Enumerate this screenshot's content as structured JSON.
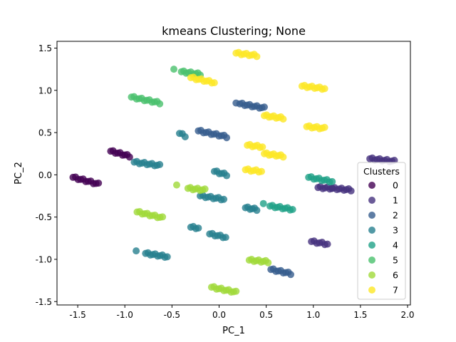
{
  "chart_data": {
    "type": "scatter",
    "title": "kmeans Clustering; None",
    "xlabel": "PC_1",
    "ylabel": "PC_2",
    "xlim": [
      -1.72,
      2.03
    ],
    "ylim": [
      -1.54,
      1.58
    ],
    "xticks": [
      "-1.5",
      "-1.0",
      "-0.5",
      "0.0",
      "0.5",
      "1.0",
      "1.5",
      "2.0"
    ],
    "xtick_values": [
      -1.5,
      -1.0,
      -0.5,
      0.0,
      0.5,
      1.0,
      1.5,
      2.0
    ],
    "yticks": [
      "-1.5",
      "-1.0",
      "-0.5",
      "0.0",
      "0.5",
      "1.0",
      "1.5"
    ],
    "ytick_values": [
      -1.5,
      -1.0,
      -0.5,
      0.0,
      0.5,
      1.0,
      1.5
    ],
    "grid": false,
    "legend": {
      "title": "Clusters",
      "position": "center-right"
    },
    "series": [
      {
        "name": "0",
        "color": "#440154",
        "segments": [
          {
            "x": [
              -1.55,
              -1.28
            ],
            "y": [
              -0.03,
              -0.11
            ]
          },
          {
            "x": [
              -1.15,
              -0.95
            ],
            "y": [
              0.28,
              0.22
            ]
          }
        ]
      },
      {
        "name": "1",
        "color": "#46327e",
        "segments": [
          {
            "x": [
              1.6,
              1.86
            ],
            "y": [
              0.19,
              0.16
            ]
          },
          {
            "x": [
              0.98,
              1.15
            ],
            "y": [
              -0.79,
              -0.82
            ]
          },
          {
            "x": [
              1.2,
              1.4
            ],
            "y": [
              -0.16,
              -0.18
            ]
          },
          {
            "x": [
              1.05,
              1.2
            ],
            "y": [
              -0.15,
              -0.16
            ]
          }
        ]
      },
      {
        "name": "2",
        "color": "#365c8d",
        "segments": [
          {
            "x": [
              -0.22,
              0.08
            ],
            "y": [
              0.52,
              0.45
            ]
          },
          {
            "x": [
              0.22,
              0.48
            ],
            "y": [
              0.84,
              0.79
            ]
          },
          {
            "x": [
              0.18,
              0.18
            ],
            "y": [
              0.85,
              0.85
            ]
          },
          {
            "x": [
              0.55,
              0.76
            ],
            "y": [
              -1.12,
              -1.17
            ]
          }
        ]
      },
      {
        "name": "3",
        "color": "#277f8e",
        "segments": [
          {
            "x": [
              -0.9,
              -0.63
            ],
            "y": [
              0.15,
              0.11
            ]
          },
          {
            "x": [
              -0.78,
              -0.55
            ],
            "y": [
              -0.93,
              -0.97
            ]
          },
          {
            "x": [
              -0.2,
              0.05
            ],
            "y": [
              -0.25,
              -0.29
            ]
          },
          {
            "x": [
              -0.05,
              0.08
            ],
            "y": [
              0.04,
              0.0
            ]
          },
          {
            "x": [
              -0.1,
              0.07
            ],
            "y": [
              -0.7,
              -0.74
            ]
          },
          {
            "x": [
              -0.88,
              -0.88
            ],
            "y": [
              -0.9,
              -0.9
            ]
          },
          {
            "x": [
              -0.42,
              -0.36
            ],
            "y": [
              0.49,
              0.46
            ]
          },
          {
            "x": [
              -0.3,
              -0.22
            ],
            "y": [
              -0.62,
              -0.63
            ]
          },
          {
            "x": [
              0.28,
              0.4
            ],
            "y": [
              -0.39,
              -0.41
            ]
          }
        ]
      },
      {
        "name": "4",
        "color": "#1fa187",
        "segments": [
          {
            "x": [
              0.54,
              0.78
            ],
            "y": [
              -0.37,
              -0.41
            ]
          },
          {
            "x": [
              0.95,
              1.2
            ],
            "y": [
              -0.03,
              -0.08
            ]
          },
          {
            "x": [
              0.47,
              0.47
            ],
            "y": [
              -0.34,
              -0.34
            ]
          }
        ]
      },
      {
        "name": "5",
        "color": "#4ac16d",
        "segments": [
          {
            "x": [
              -0.93,
              -0.63
            ],
            "y": [
              0.92,
              0.85
            ]
          },
          {
            "x": [
              -0.4,
              -0.2
            ],
            "y": [
              1.22,
              1.19
            ]
          },
          {
            "x": [
              -0.48,
              -0.48
            ],
            "y": [
              1.25,
              1.25
            ]
          }
        ]
      },
      {
        "name": "6",
        "color": "#a0da39",
        "segments": [
          {
            "x": [
              -0.87,
              -0.6
            ],
            "y": [
              -0.44,
              -0.51
            ]
          },
          {
            "x": [
              -0.33,
              -0.15
            ],
            "y": [
              -0.16,
              -0.18
            ]
          },
          {
            "x": [
              -0.08,
              0.18
            ],
            "y": [
              -1.33,
              -1.39
            ]
          },
          {
            "x": [
              0.32,
              0.52
            ],
            "y": [
              -1.01,
              -1.03
            ]
          },
          {
            "x": [
              -0.45,
              -0.45
            ],
            "y": [
              -0.12,
              -0.12
            ]
          }
        ]
      },
      {
        "name": "7",
        "color": "#fde725",
        "segments": [
          {
            "x": [
              0.18,
              0.4
            ],
            "y": [
              1.44,
              1.41
            ]
          },
          {
            "x": [
              -0.3,
              -0.05
            ],
            "y": [
              1.15,
              1.09
            ]
          },
          {
            "x": [
              0.88,
              1.12
            ],
            "y": [
              1.05,
              1.02
            ]
          },
          {
            "x": [
              0.48,
              0.68
            ],
            "y": [
              0.7,
              0.67
            ]
          },
          {
            "x": [
              0.48,
              0.68
            ],
            "y": [
              0.25,
              0.22
            ]
          },
          {
            "x": [
              0.3,
              0.46
            ],
            "y": [
              0.35,
              0.33
            ]
          },
          {
            "x": [
              0.93,
              1.12
            ],
            "y": [
              0.57,
              0.55
            ]
          },
          {
            "x": [
              0.28,
              0.45
            ],
            "y": [
              0.06,
              0.04
            ]
          }
        ]
      }
    ]
  }
}
